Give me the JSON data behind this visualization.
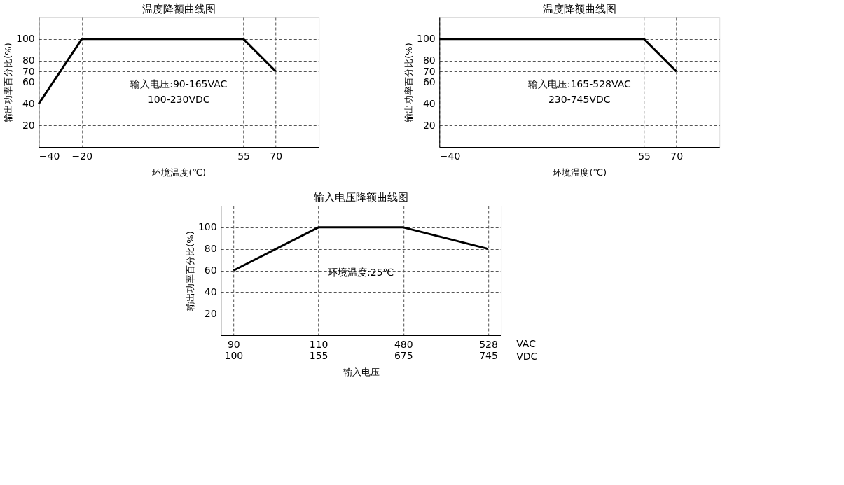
{
  "chart_data": [
    {
      "type": "line",
      "title": "温度降额曲线图",
      "xlabel": "环境温度(℃)",
      "ylabel": "输出功率百分比(%)",
      "x": [
        -40,
        -20,
        55,
        70
      ],
      "values": [
        40,
        100,
        100,
        70
      ],
      "color": "#000000",
      "xlim": [
        -40,
        90
      ],
      "xticks": [
        -40,
        -20,
        55,
        70
      ],
      "ylim": [
        0,
        120
      ],
      "yticks": [
        20,
        40,
        60,
        70,
        80,
        100
      ],
      "grid": true,
      "annotations": [
        "输入电压:90-165VAC",
        "100-230VDC"
      ]
    },
    {
      "type": "line",
      "title": "温度降额曲线图",
      "xlabel": "环境温度(℃)",
      "ylabel": "输出功率百分比(%)",
      "x": [
        -40,
        55,
        70
      ],
      "values": [
        100,
        100,
        70
      ],
      "color": "#000000",
      "xlim": [
        -40,
        90
      ],
      "xticks": [
        -40,
        55,
        70
      ],
      "ylim": [
        0,
        120
      ],
      "yticks": [
        20,
        40,
        60,
        70,
        80,
        100
      ],
      "grid": true,
      "annotations": [
        "输入电压:165-528VAC",
        "230-745VDC"
      ]
    },
    {
      "type": "line",
      "title": "输入电压降额曲线图",
      "xlabel": "输入电压",
      "ylabel": "输出功率百分比(%)",
      "categories": [
        "90\n100",
        "110\n155",
        "480\n675",
        "528\n745"
      ],
      "values": [
        60,
        100,
        100,
        80
      ],
      "color": "#000000",
      "ylim": [
        0,
        120
      ],
      "yticks": [
        20,
        40,
        60,
        80,
        100
      ],
      "grid": true,
      "annotations": [
        "环境温度:25℃",
        {
          "text": "VAC\nVDC"
        }
      ]
    }
  ]
}
